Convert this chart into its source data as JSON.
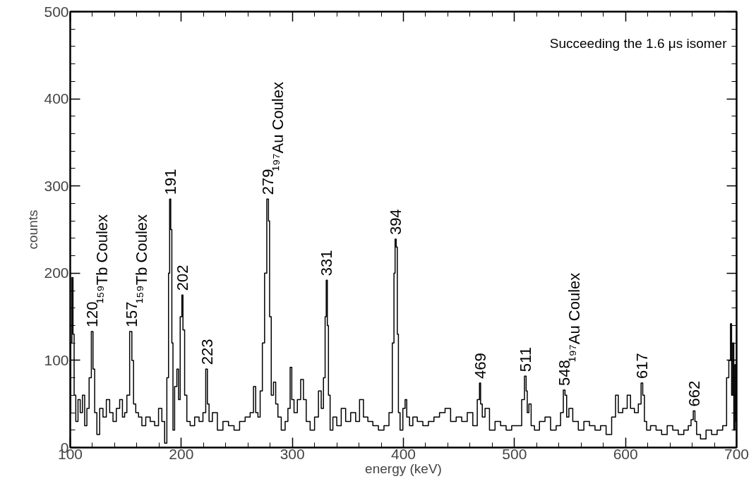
{
  "chart_data": {
    "type": "step",
    "xlabel": "energy (keV)",
    "ylabel": "counts",
    "xlim": [
      100,
      700
    ],
    "ylim": [
      0,
      500
    ],
    "xticks": [
      100,
      200,
      300,
      400,
      500,
      600,
      700
    ],
    "yticks": [
      0,
      100,
      200,
      300,
      400,
      500
    ],
    "grid": false,
    "series": [
      {
        "color": "#000000",
        "x": [
          100,
          101,
          102,
          103,
          104,
          106,
          108,
          110,
          112,
          114,
          116,
          118,
          120,
          121,
          123,
          125,
          128,
          131,
          134,
          137,
          140,
          143,
          146,
          148,
          150,
          152,
          155,
          156,
          158,
          160,
          163,
          166,
          170,
          174,
          178,
          181,
          184,
          186,
          188,
          189,
          190,
          191,
          192,
          193,
          195,
          197,
          198,
          200,
          201,
          202,
          204,
          206,
          210,
          214,
          218,
          221,
          223,
          224,
          226,
          230,
          235,
          240,
          245,
          250,
          255,
          260,
          264,
          266,
          268,
          270,
          272,
          274,
          276,
          278,
          279,
          280,
          282,
          284,
          286,
          288,
          292,
          295,
          297,
          299,
          300,
          303,
          306,
          309,
          311,
          314,
          318,
          322,
          325,
          327,
          329,
          330,
          331,
          332,
          333,
          335,
          338,
          342,
          346,
          350,
          355,
          359,
          362,
          366,
          370,
          375,
          380,
          385,
          389,
          391,
          392,
          393,
          394,
          395,
          396,
          398,
          401,
          402,
          404,
          407,
          410,
          415,
          420,
          425,
          430,
          435,
          440,
          445,
          450,
          455,
          460,
          465,
          468,
          469,
          470,
          472,
          475,
          480,
          485,
          490,
          495,
          500,
          505,
          508,
          510,
          511,
          512,
          514,
          516,
          520,
          525,
          530,
          535,
          540,
          543,
          545,
          546,
          548,
          550,
          555,
          560,
          565,
          570,
          575,
          580,
          585,
          590,
          592,
          595,
          600,
          603,
          606,
          610,
          613,
          615,
          616,
          618,
          620,
          625,
          630,
          635,
          640,
          645,
          650,
          655,
          658,
          660,
          662,
          663,
          665,
          670,
          675,
          680,
          685,
          690,
          692,
          694,
          695,
          696,
          697,
          698,
          699,
          700
        ],
        "values": [
          40,
          120,
          195,
          130,
          60,
          30,
          55,
          40,
          60,
          25,
          45,
          80,
          133,
          90,
          40,
          15,
          45,
          35,
          55,
          40,
          30,
          45,
          55,
          35,
          40,
          60,
          133,
          100,
          50,
          40,
          35,
          25,
          35,
          30,
          25,
          45,
          30,
          5,
          80,
          200,
          285,
          250,
          120,
          20,
          70,
          90,
          55,
          150,
          175,
          135,
          60,
          30,
          25,
          35,
          30,
          40,
          90,
          50,
          30,
          40,
          20,
          30,
          25,
          20,
          30,
          35,
          40,
          70,
          40,
          35,
          65,
          120,
          200,
          285,
          260,
          150,
          60,
          75,
          50,
          35,
          20,
          30,
          45,
          92,
          55,
          40,
          55,
          78,
          55,
          30,
          20,
          35,
          65,
          45,
          80,
          150,
          192,
          140,
          60,
          20,
          35,
          25,
          45,
          30,
          40,
          30,
          55,
          35,
          30,
          25,
          20,
          25,
          40,
          120,
          200,
          239,
          230,
          130,
          40,
          20,
          45,
          55,
          35,
          25,
          35,
          30,
          25,
          30,
          35,
          40,
          45,
          30,
          35,
          30,
          40,
          25,
          55,
          74,
          50,
          35,
          45,
          20,
          30,
          25,
          20,
          25,
          25,
          55,
          82,
          65,
          40,
          50,
          25,
          20,
          30,
          35,
          20,
          25,
          40,
          66,
          60,
          35,
          45,
          30,
          20,
          30,
          25,
          20,
          25,
          15,
          35,
          60,
          40,
          45,
          60,
          45,
          40,
          50,
          74,
          60,
          30,
          20,
          25,
          20,
          15,
          25,
          20,
          15,
          20,
          25,
          32,
          42,
          30,
          15,
          10,
          20,
          15,
          20,
          25,
          80,
          100,
          142,
          60,
          120,
          20,
          95,
          30
        ]
      }
    ],
    "annotations": [
      {
        "text": "120",
        "x": 120,
        "y": 133
      },
      "¹⁵⁹Tb Coulex",
      {
        "text": "157",
        "x": 155,
        "y": 133
      },
      "¹⁵⁹Tb Coulex",
      {
        "text": "191",
        "x": 190,
        "y": 285
      },
      {
        "text": "202",
        "x": 201,
        "y": 175
      },
      {
        "text": "223",
        "x": 223,
        "y": 90
      },
      {
        "text": "279",
        "x": 278,
        "y": 285
      },
      "¹⁹⁷Au Coulex",
      {
        "text": "331",
        "x": 331,
        "y": 192
      },
      {
        "text": "394",
        "x": 393,
        "y": 239
      },
      {
        "text": "469",
        "x": 469,
        "y": 74
      },
      {
        "text": "511",
        "x": 510,
        "y": 82
      },
      {
        "text": "548",
        "x": 545,
        "y": 66
      },
      "¹⁹⁷Au Coulex",
      {
        "text": "617",
        "x": 615,
        "y": 74
      },
      {
        "text": "662",
        "x": 662,
        "y": 42
      },
      "Succeeding the 1.6 μs isomer"
    ]
  }
}
